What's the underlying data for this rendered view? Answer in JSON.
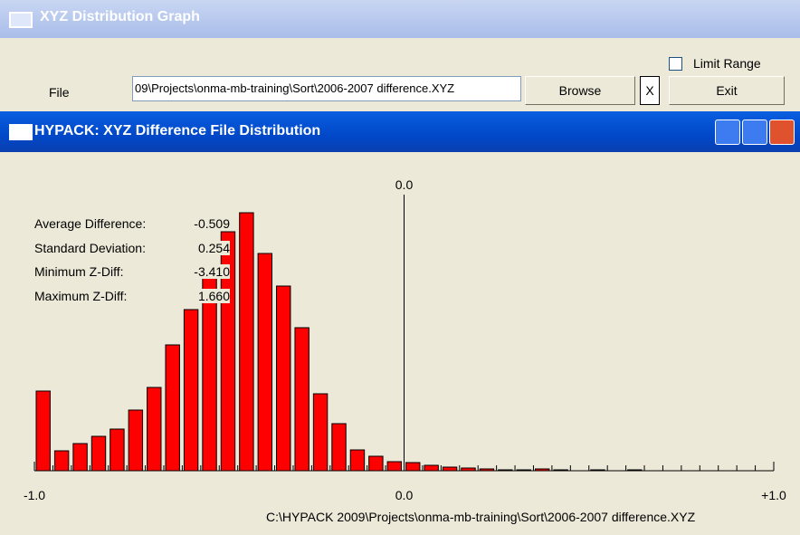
{
  "window": {
    "title": "XYZ Distribution Graph",
    "file_label": "File",
    "file_path": "09\\Projects\\onma-mb-training\\Sort\\2006-2007 difference.XYZ",
    "browse_button": "Browse",
    "clear_button": "X",
    "exit_button": "Exit",
    "limit_range_label": "Limit Range"
  },
  "child_window": {
    "title": "HYPACK: XYZ Difference File Distribution"
  },
  "stats": [
    {
      "label": "Average Difference:",
      "value": "-0.509"
    },
    {
      "label": "Standard Deviation:",
      "value": "0.254"
    },
    {
      "label": "Minimum Z-Diff:",
      "value": "-3.410"
    },
    {
      "label": "Maximum Z-Diff:",
      "value": "1.660"
    }
  ],
  "footer_path": "C:\\HYPACK 2009\\Projects\\onma-mb-training\\Sort\\2006-2007 difference.XYZ",
  "chart_data": {
    "type": "histogram",
    "color": "#ff0000",
    "bins": [
      -1.0,
      -0.95,
      -0.9,
      -0.85,
      -0.8,
      -0.75,
      -0.7,
      -0.65,
      -0.6,
      -0.55,
      -0.5,
      -0.45,
      -0.4,
      -0.35,
      -0.3,
      -0.25,
      -0.2,
      -0.15,
      -0.1,
      -0.05,
      0,
      0.05,
      0.1,
      0.15,
      0.2,
      0.25,
      0.3,
      0.35,
      0.4,
      0.45,
      0.5,
      0.55,
      0.6,
      0.65,
      0.7,
      0.75,
      0.8,
      0.85,
      0.9,
      0.95,
      1.0
    ],
    "values": [
      88,
      22,
      30,
      38,
      46,
      67,
      92,
      139,
      178,
      220,
      264,
      285,
      240,
      204,
      158,
      85,
      52,
      23,
      16,
      10,
      9,
      6,
      4,
      3,
      2,
      1,
      1,
      2,
      1,
      0,
      1,
      0,
      1,
      0,
      0,
      0,
      0,
      0,
      0,
      0
    ],
    "xlim": [
      -1.0,
      1.0
    ],
    "xticks": [
      {
        "value": -1.0,
        "label": "-1.0"
      },
      {
        "value": 0,
        "label": "0.0"
      },
      {
        "value": 1.0,
        "label": "+1.0"
      }
    ],
    "ylim": [
      0,
      300
    ],
    "zero_line": {
      "value": 0,
      "label": "0.0"
    }
  }
}
